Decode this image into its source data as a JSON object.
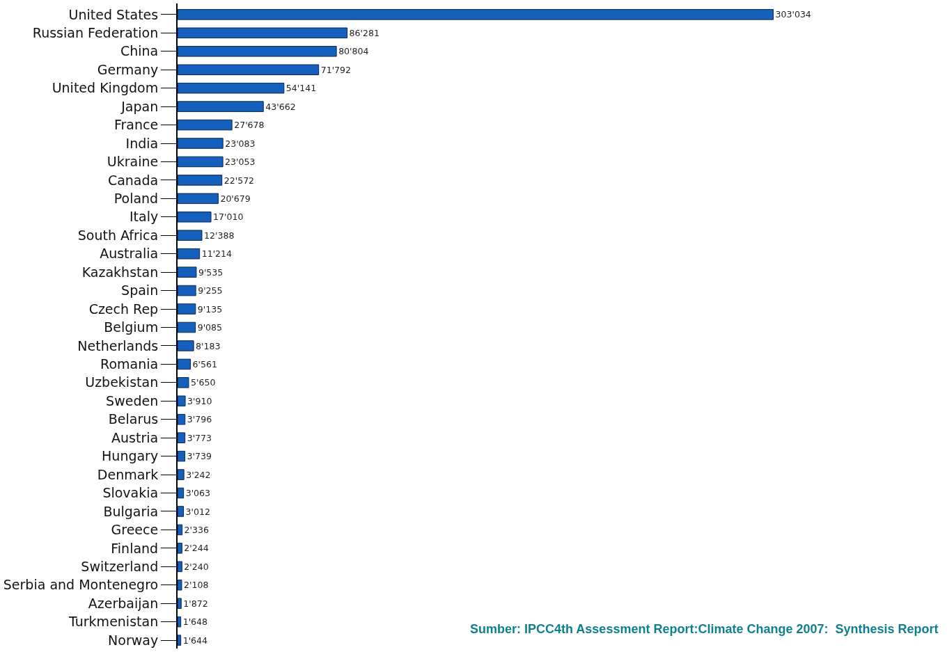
{
  "chart_data": {
    "type": "bar",
    "orientation": "horizontal",
    "categories": [
      "United States",
      "Russian Federation",
      "China",
      "Germany",
      "United Kingdom",
      "Japan",
      "France",
      "India",
      "Ukraine",
      "Canada",
      "Poland",
      "Italy",
      "South Africa",
      "Australia",
      "Kazakhstan",
      "Spain",
      "Czech Rep",
      "Belgium",
      "Netherlands",
      "Romania",
      "Uzbekistan",
      "Sweden",
      "Belarus",
      "Austria",
      "Hungary",
      "Denmark",
      "Slovakia",
      "Bulgaria",
      "Greece",
      "Finland",
      "Switzerland",
      "Serbia and Montenegro",
      "Azerbaijan",
      "Turkmenistan",
      "Norway"
    ],
    "values": [
      303034,
      86281,
      80804,
      71792,
      54141,
      43662,
      27678,
      23083,
      23053,
      22572,
      20679,
      17010,
      12388,
      11214,
      9535,
      9255,
      9135,
      9085,
      8183,
      6561,
      5650,
      3910,
      3796,
      3773,
      3739,
      3242,
      3063,
      3012,
      2336,
      2244,
      2240,
      2108,
      1872,
      1648,
      1644
    ],
    "value_labels": [
      "303'034",
      "86'281",
      "80'804",
      "71'792",
      "54'141",
      "43'662",
      "27'678",
      "23'083",
      "23'053",
      "22'572",
      "20'679",
      "17'010",
      "12'388",
      "11'214",
      "9'535",
      "9'255",
      "9'135",
      "9'085",
      "8'183",
      "6'561",
      "5'650",
      "3'910",
      "3'796",
      "3'773",
      "3'739",
      "3'242",
      "3'063",
      "3'012",
      "2'336",
      "2'244",
      "2'240",
      "2'108",
      "1'872",
      "1'648",
      "1'644"
    ],
    "color": "#1560bd",
    "annotations": [
      "Sumber: IPCC4th Assessment Report:Climate Change 2007:  Synthesis Report"
    ],
    "tick_labels": "y",
    "legend": false
  }
}
